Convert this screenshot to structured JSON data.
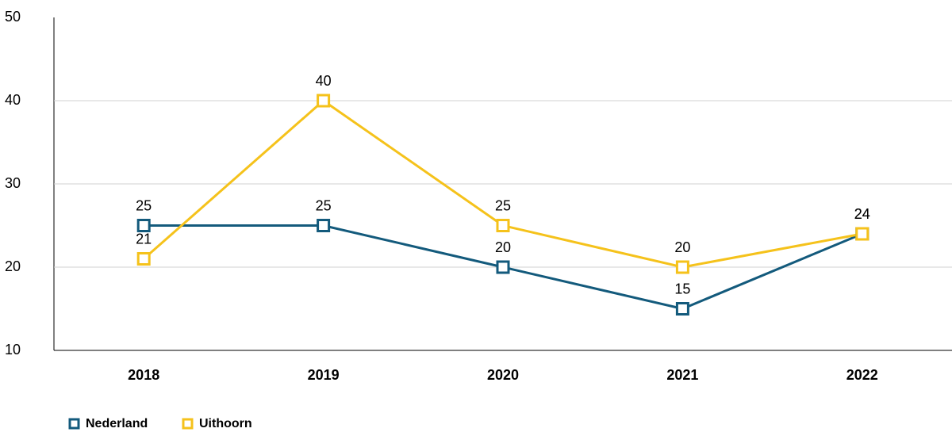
{
  "chart_data": {
    "type": "line",
    "categories": [
      "2018",
      "2019",
      "2020",
      "2021",
      "2022"
    ],
    "series": [
      {
        "name": "Nederland",
        "color": "#135a7c",
        "values": [
          25,
          25,
          20,
          15,
          24
        ]
      },
      {
        "name": "Uithoorn",
        "color": "#f5c21b",
        "values": [
          21,
          40,
          25,
          20,
          24
        ]
      }
    ],
    "ylim": [
      10,
      50
    ],
    "yticks": [
      10,
      20,
      30,
      40,
      50
    ],
    "grid": true,
    "legend": "bottom"
  }
}
